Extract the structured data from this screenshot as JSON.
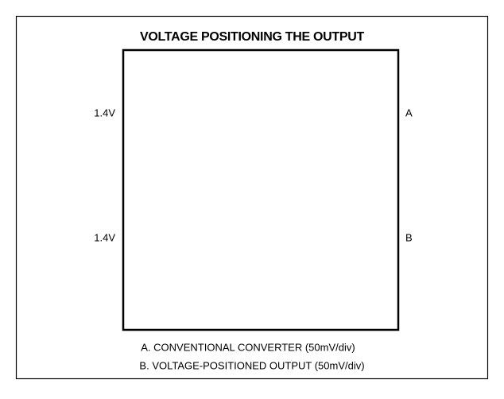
{
  "title": "VOLTAGE POSITIONING THE OUTPUT",
  "traces": [
    {
      "level_label": "1.4V",
      "trace_label": "A"
    },
    {
      "level_label": "1.4V",
      "trace_label": "B"
    }
  ],
  "captions": [
    "A. CONVENTIONAL CONVERTER (50mV/div)",
    "B. VOLTAGE-POSITIONED OUTPUT (50mV/div)"
  ]
}
